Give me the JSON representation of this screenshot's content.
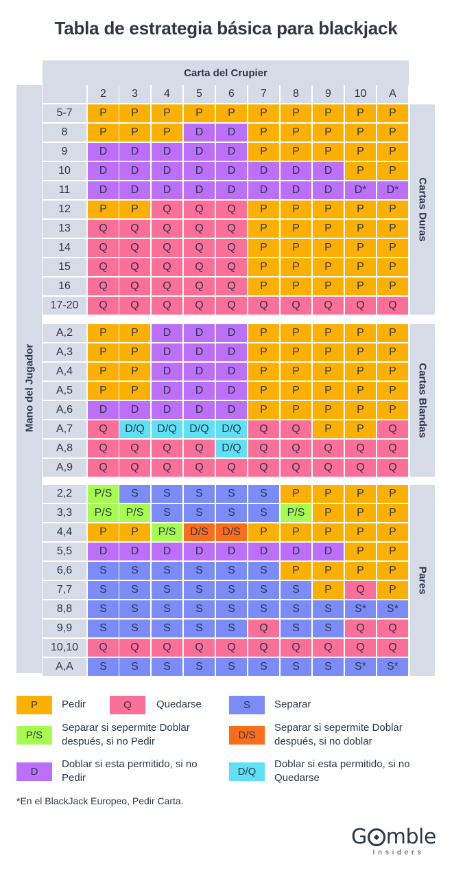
{
  "title": "Tabla de estrategia básica para blackjack",
  "dealer_label": "Carta del Crupier",
  "player_label": "Mano del Jugador",
  "dealer_cards": [
    "2",
    "3",
    "4",
    "5",
    "6",
    "7",
    "8",
    "9",
    "10",
    "A"
  ],
  "sections": [
    {
      "name": "Cartas Duras",
      "rows": [
        {
          "hand": "5-7",
          "cells": [
            "P",
            "P",
            "P",
            "P",
            "P",
            "P",
            "P",
            "P",
            "P",
            "P"
          ]
        },
        {
          "hand": "8",
          "cells": [
            "P",
            "P",
            "P",
            "D",
            "D",
            "P",
            "P",
            "P",
            "P",
            "P"
          ]
        },
        {
          "hand": "9",
          "cells": [
            "D",
            "D",
            "D",
            "D",
            "D",
            "P",
            "P",
            "P",
            "P",
            "P"
          ]
        },
        {
          "hand": "10",
          "cells": [
            "D",
            "D",
            "D",
            "D",
            "D",
            "D",
            "D",
            "D",
            "P",
            "P"
          ]
        },
        {
          "hand": "11",
          "cells": [
            "D",
            "D",
            "D",
            "D",
            "D",
            "D",
            "D",
            "D",
            "D*",
            "D*"
          ]
        },
        {
          "hand": "12",
          "cells": [
            "P",
            "P",
            "Q",
            "Q",
            "Q",
            "P",
            "P",
            "P",
            "P",
            "P"
          ]
        },
        {
          "hand": "13",
          "cells": [
            "Q",
            "Q",
            "Q",
            "Q",
            "Q",
            "P",
            "P",
            "P",
            "P",
            "P"
          ]
        },
        {
          "hand": "14",
          "cells": [
            "Q",
            "Q",
            "Q",
            "Q",
            "Q",
            "P",
            "P",
            "P",
            "P",
            "P"
          ]
        },
        {
          "hand": "15",
          "cells": [
            "Q",
            "Q",
            "Q",
            "Q",
            "Q",
            "P",
            "P",
            "P",
            "P",
            "P"
          ]
        },
        {
          "hand": "16",
          "cells": [
            "Q",
            "Q",
            "Q",
            "Q",
            "Q",
            "P",
            "P",
            "P",
            "P",
            "P"
          ]
        },
        {
          "hand": "17-20",
          "cells": [
            "Q",
            "Q",
            "Q",
            "Q",
            "Q",
            "Q",
            "Q",
            "Q",
            "Q",
            "Q"
          ]
        }
      ]
    },
    {
      "name": "Cartas Blandas",
      "rows": [
        {
          "hand": "A,2",
          "cells": [
            "P",
            "P",
            "D",
            "D",
            "D",
            "P",
            "P",
            "P",
            "P",
            "P"
          ]
        },
        {
          "hand": "A,3",
          "cells": [
            "P",
            "P",
            "D",
            "D",
            "D",
            "P",
            "P",
            "P",
            "P",
            "P"
          ]
        },
        {
          "hand": "A,4",
          "cells": [
            "P",
            "P",
            "D",
            "D",
            "D",
            "P",
            "P",
            "P",
            "P",
            "P"
          ]
        },
        {
          "hand": "A,5",
          "cells": [
            "P",
            "P",
            "D",
            "D",
            "D",
            "P",
            "P",
            "P",
            "P",
            "P"
          ]
        },
        {
          "hand": "A,6",
          "cells": [
            "D",
            "D",
            "D",
            "D",
            "D",
            "P",
            "P",
            "P",
            "P",
            "P"
          ]
        },
        {
          "hand": "A,7",
          "cells": [
            "Q",
            "D/Q",
            "D/Q",
            "D/Q",
            "D/Q",
            "Q",
            "Q",
            "P",
            "P",
            "Q"
          ]
        },
        {
          "hand": "A,8",
          "cells": [
            "Q",
            "Q",
            "Q",
            "Q",
            "D/Q",
            "Q",
            "Q",
            "Q",
            "Q",
            "Q"
          ]
        },
        {
          "hand": "A,9",
          "cells": [
            "Q",
            "Q",
            "Q",
            "Q",
            "Q",
            "Q",
            "Q",
            "Q",
            "Q",
            "Q"
          ]
        }
      ]
    },
    {
      "name": "Pares",
      "rows": [
        {
          "hand": "2,2",
          "cells": [
            "P/S",
            "S",
            "S",
            "S",
            "S",
            "S",
            "P",
            "P",
            "P",
            "P"
          ]
        },
        {
          "hand": "3,3",
          "cells": [
            "P/S",
            "P/S",
            "S",
            "S",
            "S",
            "S",
            "P/S",
            "P",
            "P",
            "P"
          ]
        },
        {
          "hand": "4,4",
          "cells": [
            "P",
            "P",
            "P/S",
            "D/S",
            "D/S",
            "P",
            "P",
            "P",
            "P",
            "P"
          ]
        },
        {
          "hand": "5,5",
          "cells": [
            "D",
            "D",
            "D",
            "D",
            "D",
            "D",
            "D",
            "D",
            "P",
            "P"
          ]
        },
        {
          "hand": "6,6",
          "cells": [
            "S",
            "S",
            "S",
            "S",
            "S",
            "S",
            "P",
            "P",
            "P",
            "P"
          ]
        },
        {
          "hand": "7,7",
          "cells": [
            "S",
            "S",
            "S",
            "S",
            "S",
            "S",
            "S",
            "P",
            "Q",
            "P"
          ]
        },
        {
          "hand": "8,8",
          "cells": [
            "S",
            "S",
            "S",
            "S",
            "S",
            "S",
            "S",
            "S",
            "S*",
            "S*"
          ]
        },
        {
          "hand": "9,9",
          "cells": [
            "S",
            "S",
            "S",
            "S",
            "S",
            "Q",
            "S",
            "S",
            "Q",
            "Q"
          ]
        },
        {
          "hand": "10,10",
          "cells": [
            "Q",
            "Q",
            "Q",
            "Q",
            "Q",
            "Q",
            "Q",
            "Q",
            "Q",
            "Q"
          ]
        },
        {
          "hand": "A,A",
          "cells": [
            "S",
            "S",
            "S",
            "S",
            "S",
            "S",
            "S",
            "S",
            "S*",
            "S*"
          ]
        }
      ]
    }
  ],
  "legend": [
    {
      "code": "P",
      "text": "Pedir"
    },
    {
      "code": "Q",
      "text": "Quedarse"
    },
    {
      "code": "S",
      "text": "Separar"
    },
    {
      "code": "P/S",
      "text": "Separar si sepermite Doblar después, si no Pedir"
    },
    {
      "code": "D/S",
      "text": "Separar si sepermite Doblar después, si no doblar"
    },
    {
      "code": "D",
      "text": "Doblar si esta permitido, si no Pedir"
    },
    {
      "code": "D/Q",
      "text": "Doblar si esta permitido, si no Quedarse"
    }
  ],
  "footnote": "*En el BlackJack Europeo, Pedir Carta.",
  "brand": {
    "name": "Gamble",
    "sub": "Insiders"
  },
  "colors": {
    "P": "#fbb003",
    "Q": "#fb6f98",
    "S": "#7b8cf9",
    "P/S": "#a7fa4f",
    "D/S": "#fb6c1b",
    "D": "#bc6ff9",
    "D/Q": "#5ee0f6",
    "header": "#d6dbe8",
    "text": "#2c3748"
  }
}
